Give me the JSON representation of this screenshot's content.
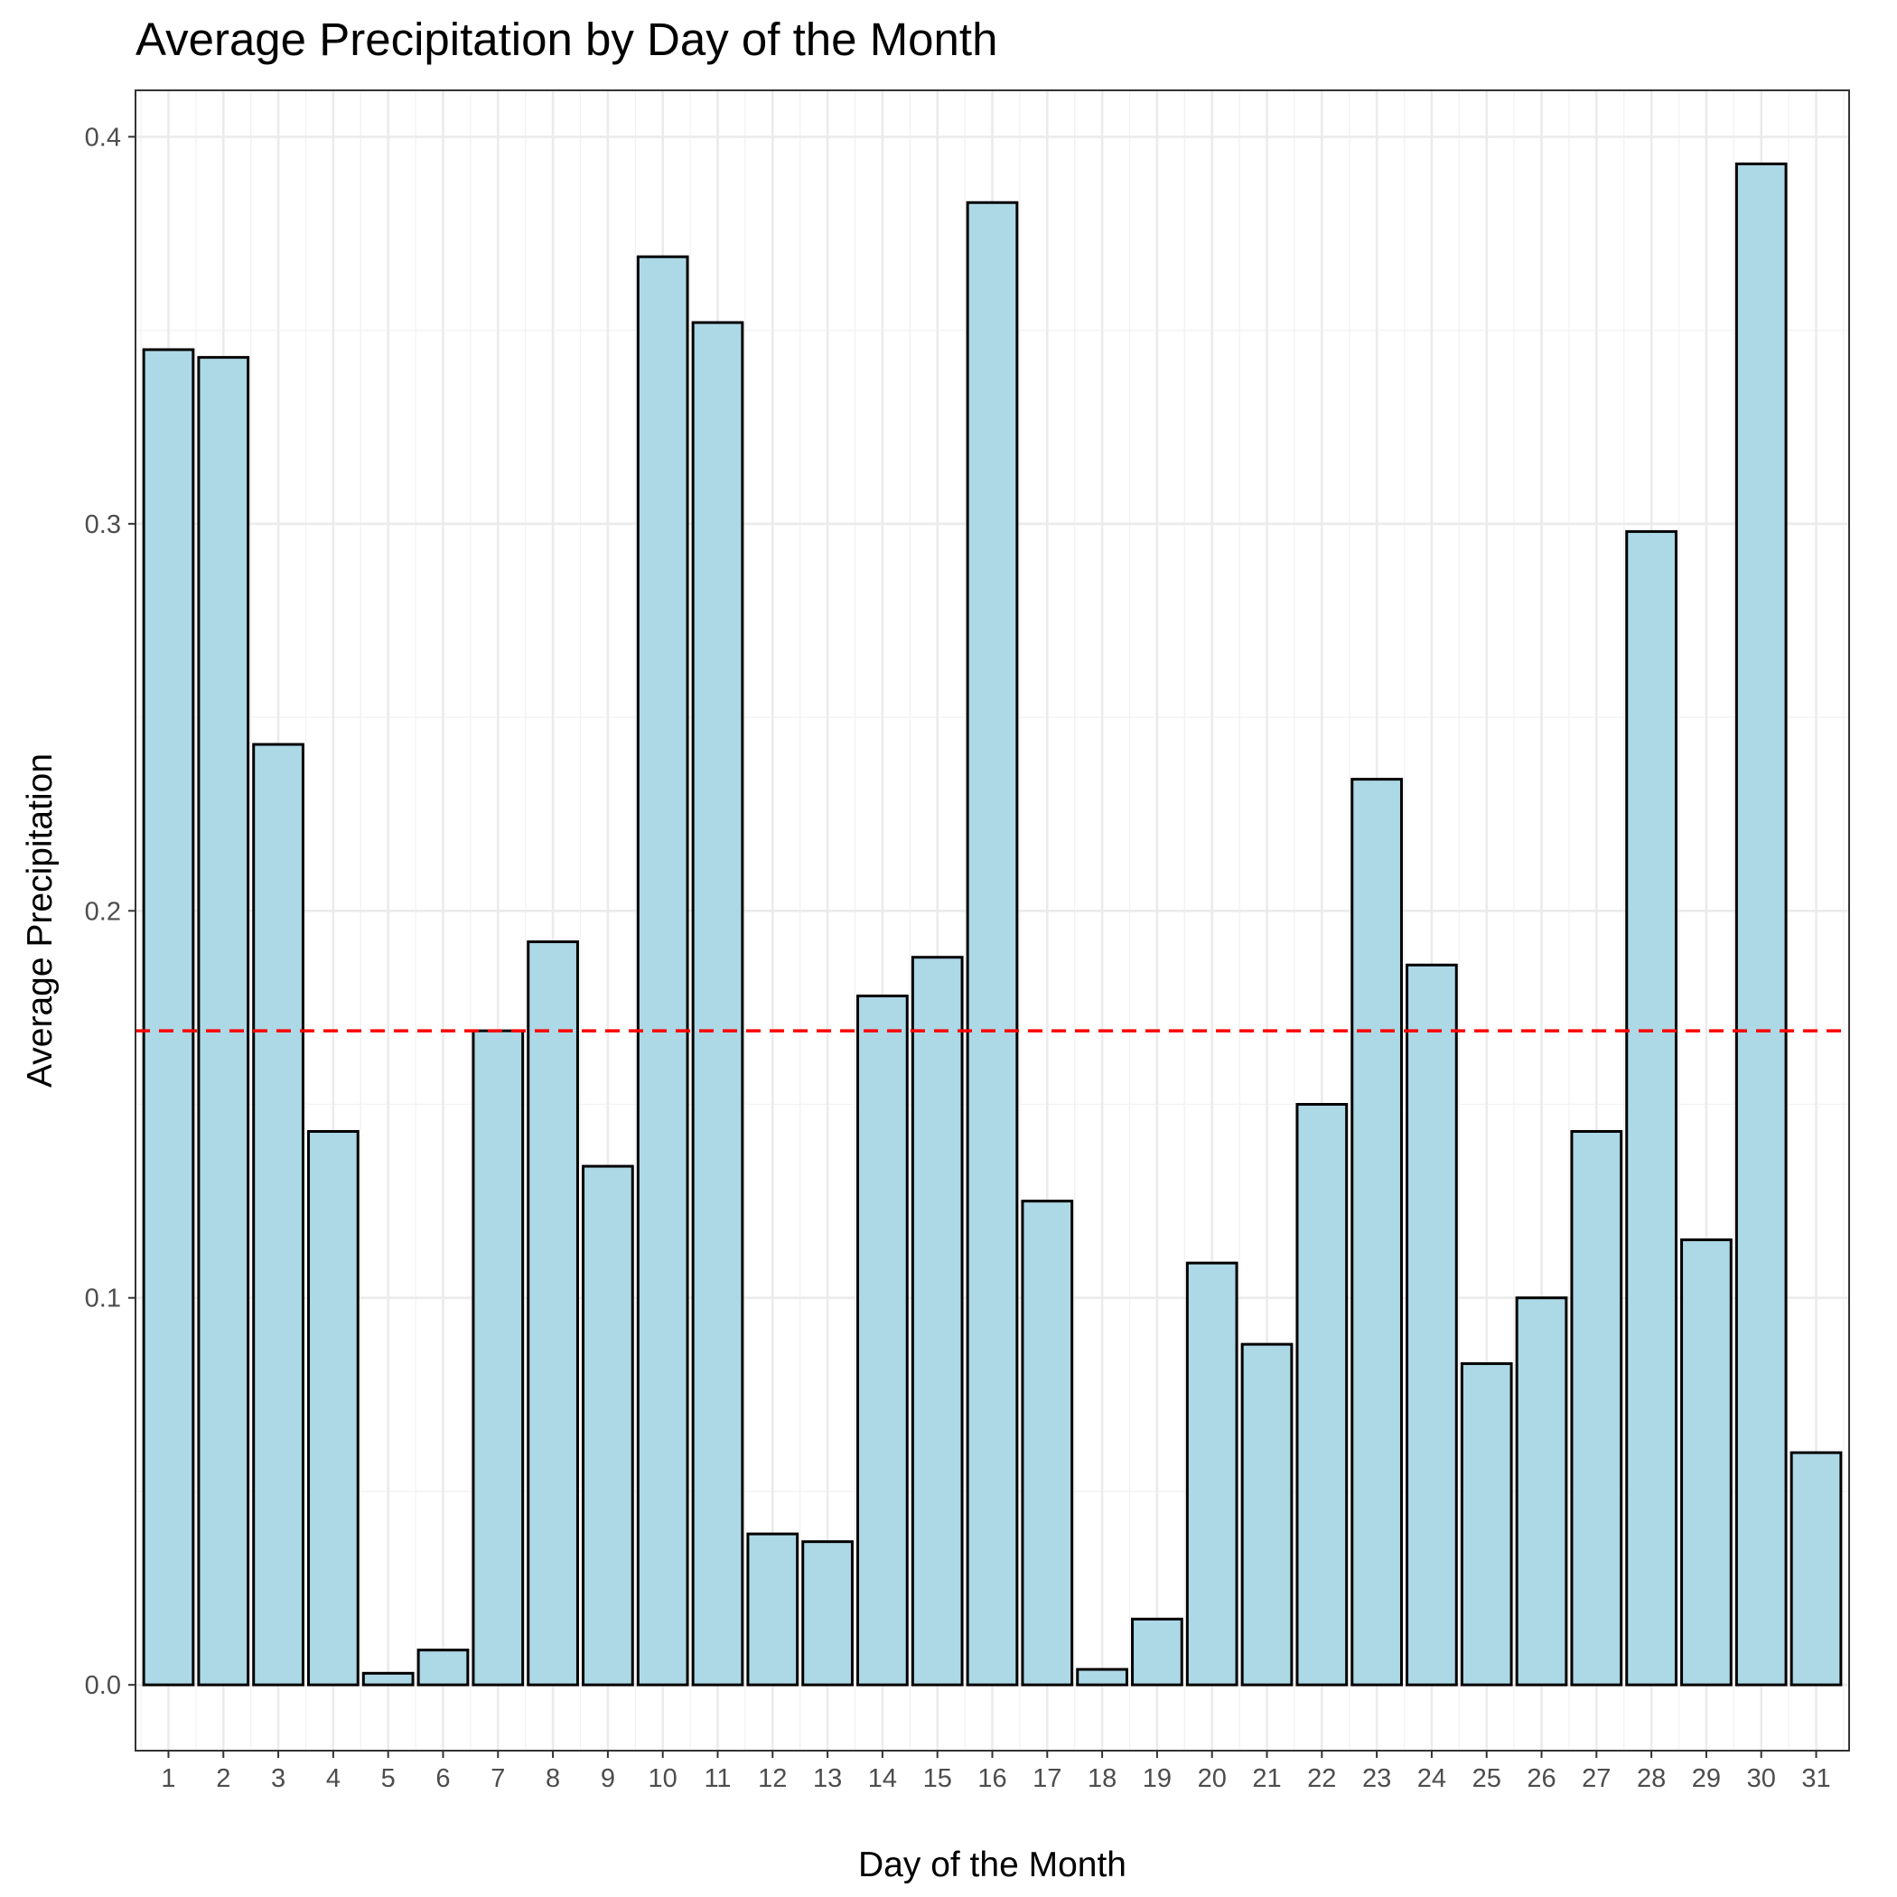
{
  "chart_data": {
    "type": "bar",
    "title": "Average Precipitation by Day of the Month",
    "xlabel": "Day of the Month",
    "ylabel": "Average Precipitation",
    "categories": [
      "1",
      "2",
      "3",
      "4",
      "5",
      "6",
      "7",
      "8",
      "9",
      "10",
      "11",
      "12",
      "13",
      "14",
      "15",
      "16",
      "17",
      "18",
      "19",
      "20",
      "21",
      "22",
      "23",
      "24",
      "25",
      "26",
      "27",
      "28",
      "29",
      "30",
      "31"
    ],
    "values": [
      0.345,
      0.343,
      0.243,
      0.143,
      0.003,
      0.009,
      0.169,
      0.192,
      0.134,
      0.369,
      0.352,
      0.039,
      0.037,
      0.178,
      0.188,
      0.383,
      0.125,
      0.004,
      0.017,
      0.109,
      0.088,
      0.15,
      0.234,
      0.186,
      0.083,
      0.1,
      0.143,
      0.298,
      0.115,
      0.393,
      0.06
    ],
    "reference_line": {
      "value": 0.169,
      "style": "dashed",
      "color": "#ff0000"
    },
    "y_ticks": [
      "0.0",
      "0.1",
      "0.2",
      "0.3",
      "0.4"
    ],
    "ylim": [
      -0.017,
      0.412
    ],
    "bar_fill": "#add8e6",
    "bar_stroke": "#000000",
    "grid": true,
    "legend": "none"
  }
}
